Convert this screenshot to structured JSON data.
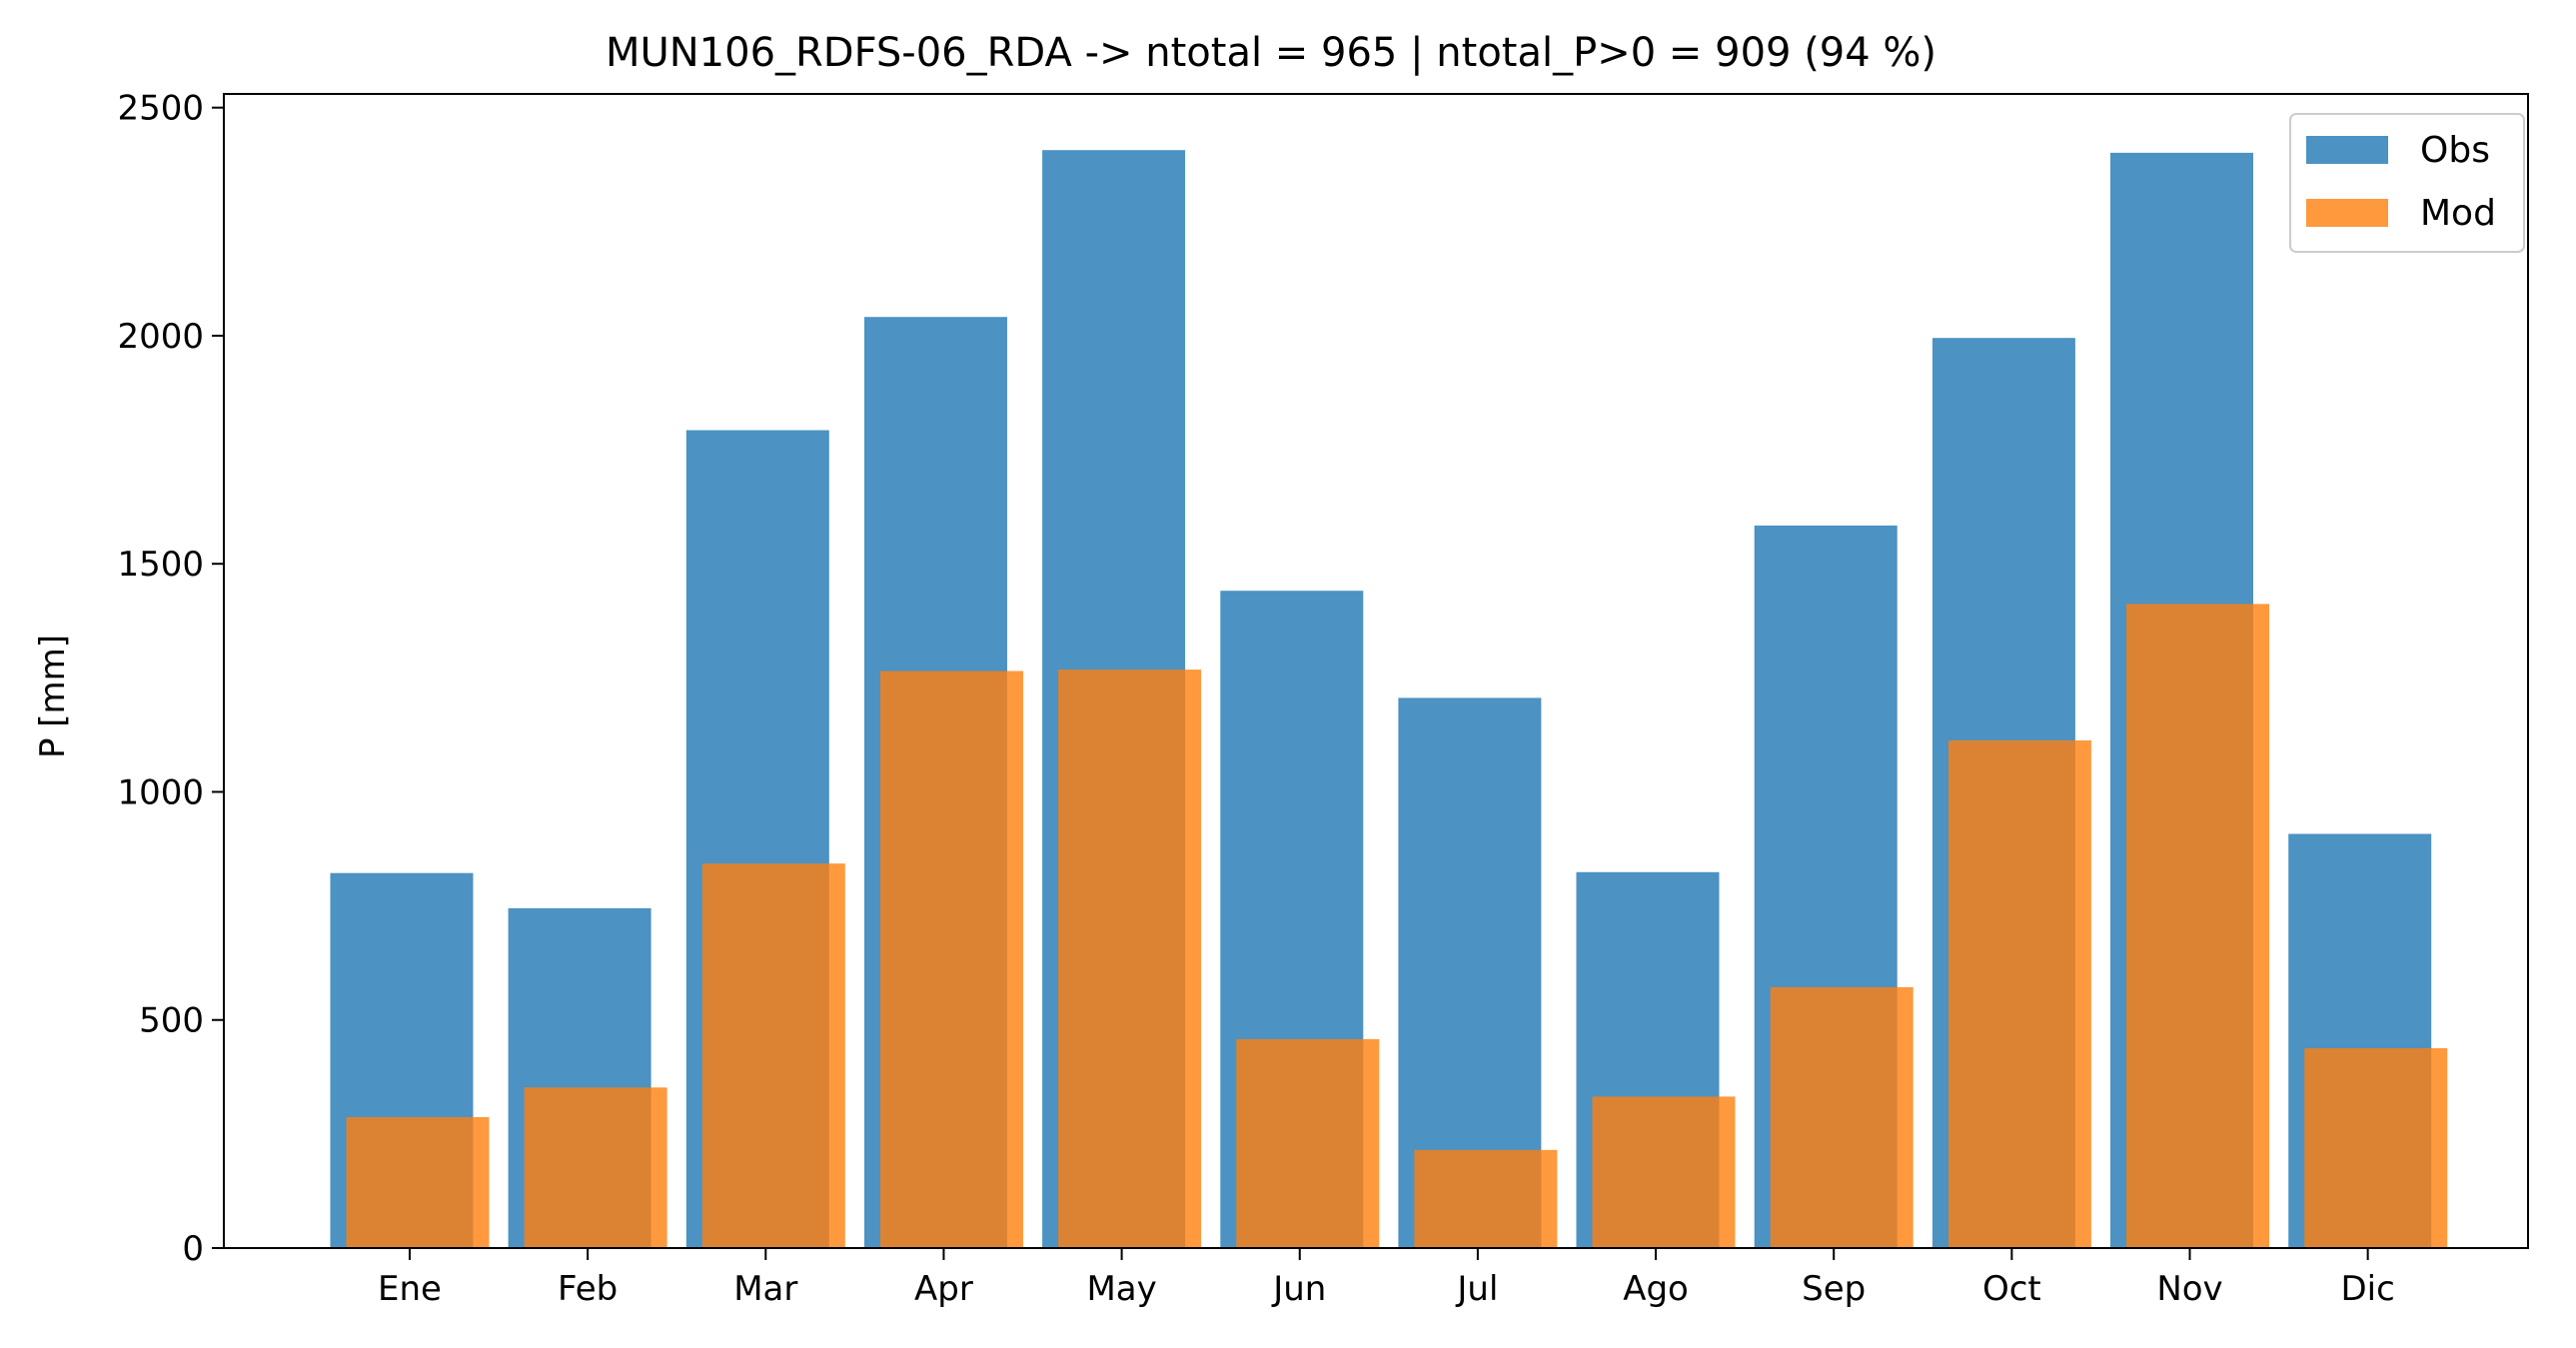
{
  "chart_data": {
    "type": "bar",
    "title": "MUN106_RDFS-06_RDA -> ntotal = 965 | ntotal_P>0 = 909 (94 %)",
    "xlabel": "",
    "ylabel": "P [mm]",
    "categories": [
      "Ene",
      "Feb",
      "Mar",
      "Apr",
      "May",
      "Jun",
      "Jul",
      "Ago",
      "Sep",
      "Oct",
      "Nov",
      "Dic"
    ],
    "series": [
      {
        "name": "Obs",
        "color": "#1f77b4",
        "values": [
          822,
          745,
          1793,
          2041,
          2407,
          1441,
          1206,
          824,
          1584,
          1995,
          2401,
          908
        ]
      },
      {
        "name": "Mod",
        "color": "#ff7f0e",
        "values": [
          287,
          352,
          843,
          1265,
          1268,
          458,
          215,
          332,
          572,
          1113,
          1412,
          438
        ]
      }
    ],
    "ylim": [
      0,
      2530
    ],
    "yticks": [
      0,
      500,
      1000,
      1500,
      2000,
      2500
    ],
    "legend_position": "top-right",
    "grid": false
  }
}
